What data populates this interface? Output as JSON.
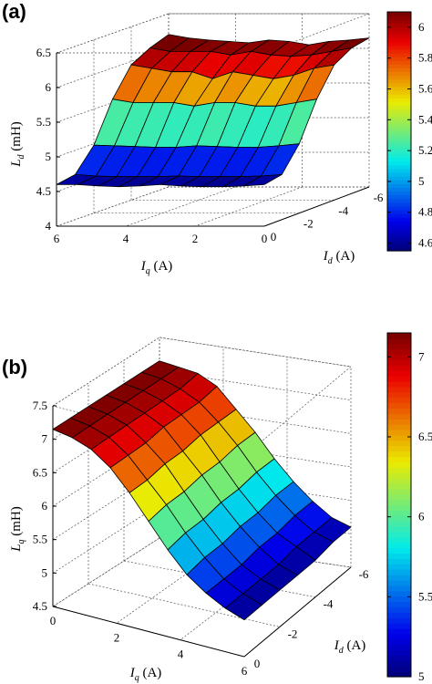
{
  "chart_data": [
    {
      "panel": "(a)",
      "type": "surface3d",
      "z_label_var": "L",
      "z_label_sub": "d",
      "z_label_unit": " (mH)",
      "x_label_var": "I",
      "x_label_sub": "q",
      "x_label_unit": " (A)",
      "y_label_var": "I",
      "y_label_sub": "d",
      "y_label_unit": " (A)",
      "z_ticks": [
        "4",
        "4.5",
        "5",
        "5.5",
        "6",
        "6.5"
      ],
      "iq_ticks": [
        "6",
        "4",
        "2",
        "0"
      ],
      "id_ticks": [
        "0",
        "-2",
        "-4",
        "-6"
      ],
      "colorbar_ticks": [
        "6",
        "5.8",
        "5.6",
        "5.4",
        "5.2",
        "5",
        "4.8",
        "4.6"
      ],
      "colorbar_range": [
        4.55,
        6.1
      ],
      "zlim": [
        4,
        6.5
      ],
      "iq_range": [
        0,
        6
      ],
      "id_range": [
        -6,
        0
      ],
      "grid": true,
      "colormap": "jet",
      "iq_values": [
        0,
        0.6,
        1.2,
        1.8,
        2.4,
        3.0,
        3.6,
        4.2,
        4.8,
        5.4,
        6.0
      ],
      "id_values": [
        0,
        -1,
        -2,
        -3,
        -4,
        -5,
        -6
      ],
      "z_values": [
        [
          4.6,
          4.58,
          4.57,
          4.57,
          4.58,
          4.6,
          4.58,
          4.57,
          4.58,
          4.6,
          4.6
        ],
        [
          4.65,
          4.63,
          4.62,
          4.62,
          4.62,
          4.63,
          4.62,
          4.62,
          4.62,
          4.63,
          4.65
        ],
        [
          5.0,
          4.97,
          4.95,
          4.95,
          4.96,
          4.97,
          4.95,
          4.95,
          4.96,
          4.97,
          4.98
        ],
        [
          5.55,
          5.5,
          5.45,
          5.45,
          5.5,
          5.5,
          5.45,
          5.5,
          5.5,
          5.5,
          5.55
        ],
        [
          5.95,
          5.9,
          5.8,
          5.75,
          5.8,
          5.85,
          5.75,
          5.85,
          5.85,
          5.9,
          5.95
        ],
        [
          6.1,
          6.05,
          6.0,
          5.98,
          6.0,
          6.05,
          6.0,
          6.05,
          6.05,
          6.05,
          6.1
        ],
        [
          6.15,
          6.12,
          6.1,
          6.05,
          6.1,
          6.12,
          6.08,
          6.1,
          6.12,
          6.15,
          6.2
        ]
      ]
    },
    {
      "panel": "(b)",
      "type": "surface3d",
      "z_label_var": "L",
      "z_label_sub": "q",
      "z_label_unit": " (mH)",
      "x_label_var": "I",
      "x_label_sub": "q",
      "x_label_unit": " (A)",
      "y_label_var": "I",
      "y_label_sub": "d",
      "y_label_unit": " (A)",
      "z_ticks": [
        "4.5",
        "5",
        "5.5",
        "6",
        "6.5",
        "7",
        "7.5"
      ],
      "iq_ticks": [
        "0",
        "2",
        "4",
        "6"
      ],
      "id_ticks": [
        "0",
        "-2",
        "-4",
        "-6"
      ],
      "colorbar_ticks": [
        "7",
        "6.5",
        "6",
        "5.5",
        "5"
      ],
      "colorbar_range": [
        5.0,
        7.15
      ],
      "zlim": [
        4.5,
        7.5
      ],
      "iq_range": [
        0,
        6
      ],
      "id_range": [
        -6,
        0
      ],
      "grid": true,
      "colormap": "jet",
      "iq_values": [
        0,
        0.6,
        1.2,
        1.8,
        2.4,
        3.0,
        3.6,
        4.2,
        4.8,
        5.4,
        6.0
      ],
      "id_values": [
        0,
        -1,
        -2,
        -3,
        -4,
        -5,
        -6
      ],
      "z_values": [
        [
          7.15,
          7.1,
          7.0,
          6.8,
          6.5,
          6.15,
          5.8,
          5.5,
          5.3,
          5.15,
          5.05
        ],
        [
          7.15,
          7.1,
          7.0,
          6.8,
          6.5,
          6.2,
          5.85,
          5.55,
          5.3,
          5.15,
          5.05
        ],
        [
          7.15,
          7.1,
          7.0,
          6.8,
          6.55,
          6.2,
          5.85,
          5.55,
          5.3,
          5.15,
          5.05
        ],
        [
          7.15,
          7.1,
          7.0,
          6.85,
          6.55,
          6.25,
          5.9,
          5.6,
          5.35,
          5.15,
          5.05
        ],
        [
          7.15,
          7.1,
          7.0,
          6.85,
          6.6,
          6.25,
          5.9,
          5.6,
          5.35,
          5.2,
          5.05
        ],
        [
          7.15,
          7.1,
          7.0,
          6.85,
          6.6,
          6.3,
          5.95,
          5.65,
          5.4,
          5.2,
          5.1
        ],
        [
          7.15,
          7.1,
          7.05,
          6.9,
          6.6,
          6.3,
          5.95,
          5.65,
          5.4,
          5.2,
          5.1
        ]
      ]
    }
  ]
}
